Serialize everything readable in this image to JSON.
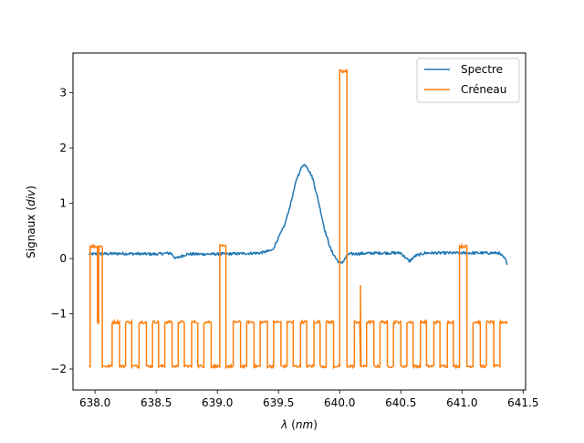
{
  "chart_data": {
    "type": "line",
    "title": "",
    "xlabel_symbol": "λ",
    "xlabel_unit": "nm",
    "ylabel_text": "Signaux",
    "ylabel_unit": "div",
    "xlim": [
      637.82,
      641.52
    ],
    "ylim": [
      -2.38,
      3.72
    ],
    "xticks": [
      638.0,
      638.5,
      639.0,
      639.5,
      640.0,
      640.5,
      641.0,
      641.5
    ],
    "xtick_labels": [
      "638.0",
      "638.5",
      "639.0",
      "639.5",
      "640.0",
      "640.5",
      "641.0",
      "641.5"
    ],
    "yticks": [
      -2,
      -1,
      0,
      1,
      2,
      3
    ],
    "ytick_labels": [
      "−2",
      "−1",
      "0",
      "1",
      "2",
      "3"
    ],
    "grid": false,
    "legend_position": "top-right",
    "series": [
      {
        "name": "Spectre",
        "color": "#1f77b4",
        "x": [
          637.95,
          638.2,
          638.5,
          638.62,
          638.66,
          638.75,
          639.0,
          639.2,
          639.35,
          639.45,
          639.55,
          639.6,
          639.65,
          639.7,
          639.73,
          639.78,
          639.83,
          639.88,
          639.93,
          639.97,
          640.0,
          640.03,
          640.07,
          640.3,
          640.5,
          640.57,
          640.62,
          640.7,
          641.0,
          641.3,
          641.35,
          641.37
        ],
        "y": [
          0.08,
          0.09,
          0.08,
          0.1,
          0.0,
          0.08,
          0.08,
          0.09,
          0.1,
          0.15,
          0.6,
          1.0,
          1.45,
          1.7,
          1.68,
          1.45,
          1.0,
          0.5,
          0.15,
          0.0,
          -0.09,
          -0.05,
          0.08,
          0.1,
          0.1,
          -0.05,
          0.05,
          0.1,
          0.1,
          0.1,
          0.0,
          -0.09
        ]
      },
      {
        "name": "Créneau",
        "color": "#ff7f0e",
        "levels": {
          "low": -1.95,
          "mid": -1.15,
          "high_small": 0.22,
          "high_big": 3.38
        },
        "x_start": 637.95,
        "x_end": 641.38,
        "segments": [
          [
            637.95,
            637.96,
            -1.95
          ],
          [
            637.96,
            638.02,
            0.22
          ],
          [
            638.02,
            638.03,
            -1.15
          ],
          [
            638.03,
            638.06,
            0.22
          ],
          [
            638.06,
            638.14,
            -1.95
          ],
          [
            638.14,
            638.2,
            -1.15
          ],
          [
            638.2,
            638.25,
            -1.95
          ],
          [
            638.25,
            638.3,
            -1.15
          ],
          [
            638.3,
            638.36,
            -1.95
          ],
          [
            638.36,
            638.42,
            -1.15
          ],
          [
            638.42,
            638.47,
            -1.95
          ],
          [
            638.47,
            638.52,
            -1.15
          ],
          [
            638.52,
            638.57,
            -1.95
          ],
          [
            638.57,
            638.63,
            -1.15
          ],
          [
            638.63,
            638.68,
            -1.95
          ],
          [
            638.68,
            638.73,
            -1.15
          ],
          [
            638.73,
            638.79,
            -1.95
          ],
          [
            638.79,
            638.84,
            -1.15
          ],
          [
            638.84,
            638.89,
            -1.95
          ],
          [
            638.89,
            638.95,
            -1.15
          ],
          [
            638.95,
            639.02,
            -1.95
          ],
          [
            639.02,
            639.07,
            0.22
          ],
          [
            639.07,
            639.13,
            -1.95
          ],
          [
            639.13,
            639.19,
            -1.15
          ],
          [
            639.19,
            639.24,
            -1.95
          ],
          [
            639.24,
            639.3,
            -1.15
          ],
          [
            639.3,
            639.35,
            -1.95
          ],
          [
            639.35,
            639.41,
            -1.15
          ],
          [
            639.41,
            639.46,
            -1.95
          ],
          [
            639.46,
            639.52,
            -1.15
          ],
          [
            639.52,
            639.57,
            -1.95
          ],
          [
            639.57,
            639.62,
            -1.15
          ],
          [
            639.62,
            639.68,
            -1.95
          ],
          [
            639.68,
            639.73,
            -1.15
          ],
          [
            639.73,
            639.79,
            -1.95
          ],
          [
            639.79,
            639.84,
            -1.15
          ],
          [
            639.84,
            639.89,
            -1.95
          ],
          [
            639.89,
            639.95,
            -1.15
          ],
          [
            639.95,
            640.0,
            -1.95
          ],
          [
            640.0,
            640.06,
            3.38
          ],
          [
            640.06,
            640.12,
            -1.95
          ],
          [
            640.12,
            640.17,
            -1.15
          ],
          [
            640.17,
            640.22,
            -1.95
          ],
          [
            640.22,
            640.28,
            -1.15
          ],
          [
            640.28,
            640.33,
            -1.95
          ],
          [
            640.33,
            640.39,
            -1.15
          ],
          [
            640.39,
            640.44,
            -1.95
          ],
          [
            640.44,
            640.5,
            -1.15
          ],
          [
            640.5,
            640.55,
            -1.95
          ],
          [
            640.55,
            640.6,
            -1.15
          ],
          [
            640.6,
            640.66,
            -1.95
          ],
          [
            640.66,
            640.71,
            -1.15
          ],
          [
            640.71,
            640.77,
            -1.95
          ],
          [
            640.77,
            640.82,
            -1.15
          ],
          [
            640.82,
            640.88,
            -1.95
          ],
          [
            640.88,
            640.93,
            -1.15
          ],
          [
            640.93,
            640.98,
            -1.95
          ],
          [
            640.98,
            641.04,
            0.22
          ],
          [
            641.04,
            641.09,
            -1.95
          ],
          [
            641.09,
            641.15,
            -1.15
          ],
          [
            641.15,
            641.2,
            -1.95
          ],
          [
            641.2,
            641.26,
            -1.15
          ],
          [
            641.26,
            641.31,
            -1.95
          ],
          [
            641.31,
            641.37,
            -1.15
          ]
        ],
        "spike": {
          "x": 640.17,
          "y": -0.48
        }
      }
    ]
  }
}
